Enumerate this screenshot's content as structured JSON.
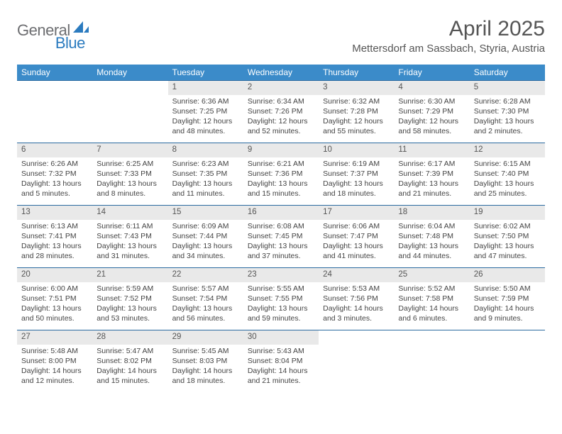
{
  "brand": {
    "part1": "General",
    "part2": "Blue"
  },
  "title": "April 2025",
  "location": "Mettersdorf am Sassbach, Styria, Austria",
  "colors": {
    "header_bg": "#3b8bc9",
    "header_text": "#ffffff",
    "daynum_bg": "#e9e9e9",
    "row_border": "#2b6aa0",
    "body_text": "#444444",
    "title_text": "#555555",
    "logo_gray": "#6d6e71",
    "logo_blue": "#2b7bbf"
  },
  "typography": {
    "title_fontsize": 30,
    "location_fontsize": 15,
    "header_fontsize": 12,
    "daynum_fontsize": 11.5,
    "cell_fontsize": 10.5
  },
  "weekdays": [
    "Sunday",
    "Monday",
    "Tuesday",
    "Wednesday",
    "Thursday",
    "Friday",
    "Saturday"
  ],
  "weeks": [
    [
      null,
      null,
      {
        "n": "1",
        "sr": "6:36 AM",
        "ss": "7:25 PM",
        "dl": "12 hours and 48 minutes."
      },
      {
        "n": "2",
        "sr": "6:34 AM",
        "ss": "7:26 PM",
        "dl": "12 hours and 52 minutes."
      },
      {
        "n": "3",
        "sr": "6:32 AM",
        "ss": "7:28 PM",
        "dl": "12 hours and 55 minutes."
      },
      {
        "n": "4",
        "sr": "6:30 AM",
        "ss": "7:29 PM",
        "dl": "12 hours and 58 minutes."
      },
      {
        "n": "5",
        "sr": "6:28 AM",
        "ss": "7:30 PM",
        "dl": "13 hours and 2 minutes."
      }
    ],
    [
      {
        "n": "6",
        "sr": "6:26 AM",
        "ss": "7:32 PM",
        "dl": "13 hours and 5 minutes."
      },
      {
        "n": "7",
        "sr": "6:25 AM",
        "ss": "7:33 PM",
        "dl": "13 hours and 8 minutes."
      },
      {
        "n": "8",
        "sr": "6:23 AM",
        "ss": "7:35 PM",
        "dl": "13 hours and 11 minutes."
      },
      {
        "n": "9",
        "sr": "6:21 AM",
        "ss": "7:36 PM",
        "dl": "13 hours and 15 minutes."
      },
      {
        "n": "10",
        "sr": "6:19 AM",
        "ss": "7:37 PM",
        "dl": "13 hours and 18 minutes."
      },
      {
        "n": "11",
        "sr": "6:17 AM",
        "ss": "7:39 PM",
        "dl": "13 hours and 21 minutes."
      },
      {
        "n": "12",
        "sr": "6:15 AM",
        "ss": "7:40 PM",
        "dl": "13 hours and 25 minutes."
      }
    ],
    [
      {
        "n": "13",
        "sr": "6:13 AM",
        "ss": "7:41 PM",
        "dl": "13 hours and 28 minutes."
      },
      {
        "n": "14",
        "sr": "6:11 AM",
        "ss": "7:43 PM",
        "dl": "13 hours and 31 minutes."
      },
      {
        "n": "15",
        "sr": "6:09 AM",
        "ss": "7:44 PM",
        "dl": "13 hours and 34 minutes."
      },
      {
        "n": "16",
        "sr": "6:08 AM",
        "ss": "7:45 PM",
        "dl": "13 hours and 37 minutes."
      },
      {
        "n": "17",
        "sr": "6:06 AM",
        "ss": "7:47 PM",
        "dl": "13 hours and 41 minutes."
      },
      {
        "n": "18",
        "sr": "6:04 AM",
        "ss": "7:48 PM",
        "dl": "13 hours and 44 minutes."
      },
      {
        "n": "19",
        "sr": "6:02 AM",
        "ss": "7:50 PM",
        "dl": "13 hours and 47 minutes."
      }
    ],
    [
      {
        "n": "20",
        "sr": "6:00 AM",
        "ss": "7:51 PM",
        "dl": "13 hours and 50 minutes."
      },
      {
        "n": "21",
        "sr": "5:59 AM",
        "ss": "7:52 PM",
        "dl": "13 hours and 53 minutes."
      },
      {
        "n": "22",
        "sr": "5:57 AM",
        "ss": "7:54 PM",
        "dl": "13 hours and 56 minutes."
      },
      {
        "n": "23",
        "sr": "5:55 AM",
        "ss": "7:55 PM",
        "dl": "13 hours and 59 minutes."
      },
      {
        "n": "24",
        "sr": "5:53 AM",
        "ss": "7:56 PM",
        "dl": "14 hours and 3 minutes."
      },
      {
        "n": "25",
        "sr": "5:52 AM",
        "ss": "7:58 PM",
        "dl": "14 hours and 6 minutes."
      },
      {
        "n": "26",
        "sr": "5:50 AM",
        "ss": "7:59 PM",
        "dl": "14 hours and 9 minutes."
      }
    ],
    [
      {
        "n": "27",
        "sr": "5:48 AM",
        "ss": "8:00 PM",
        "dl": "14 hours and 12 minutes."
      },
      {
        "n": "28",
        "sr": "5:47 AM",
        "ss": "8:02 PM",
        "dl": "14 hours and 15 minutes."
      },
      {
        "n": "29",
        "sr": "5:45 AM",
        "ss": "8:03 PM",
        "dl": "14 hours and 18 minutes."
      },
      {
        "n": "30",
        "sr": "5:43 AM",
        "ss": "8:04 PM",
        "dl": "14 hours and 21 minutes."
      },
      null,
      null,
      null
    ]
  ],
  "labels": {
    "sunrise_prefix": "Sunrise: ",
    "sunset_prefix": "Sunset: ",
    "daylight_prefix": "Daylight: "
  }
}
